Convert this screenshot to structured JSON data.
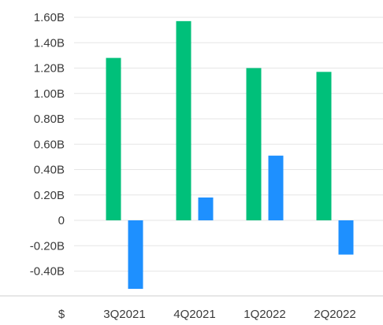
{
  "chart_data": {
    "type": "bar",
    "currency_label": "$",
    "categories": [
      "3Q2021",
      "4Q2021",
      "1Q2022",
      "2Q2022"
    ],
    "series": [
      {
        "color": "#00c07a",
        "values": [
          1.28,
          1.57,
          1.2,
          1.17
        ]
      },
      {
        "color": "#1e90ff",
        "values": [
          -0.54,
          0.18,
          0.51,
          -0.27
        ]
      }
    ],
    "y_ticks": [
      {
        "value": 1.6,
        "label": "1.60B"
      },
      {
        "value": 1.4,
        "label": "1.40B"
      },
      {
        "value": 1.2,
        "label": "1.20B"
      },
      {
        "value": 1.0,
        "label": "1.00B"
      },
      {
        "value": 0.8,
        "label": "0.80B"
      },
      {
        "value": 0.6,
        "label": "0.60B"
      },
      {
        "value": 0.4,
        "label": "0.40B"
      },
      {
        "value": 0.2,
        "label": "0.20B"
      },
      {
        "value": 0.0,
        "label": "0"
      },
      {
        "value": -0.2,
        "label": "-0.20B"
      },
      {
        "value": -0.4,
        "label": "-0.40B"
      }
    ],
    "ylim": [
      -0.6,
      1.6
    ],
    "grid": true,
    "legend": "none"
  }
}
